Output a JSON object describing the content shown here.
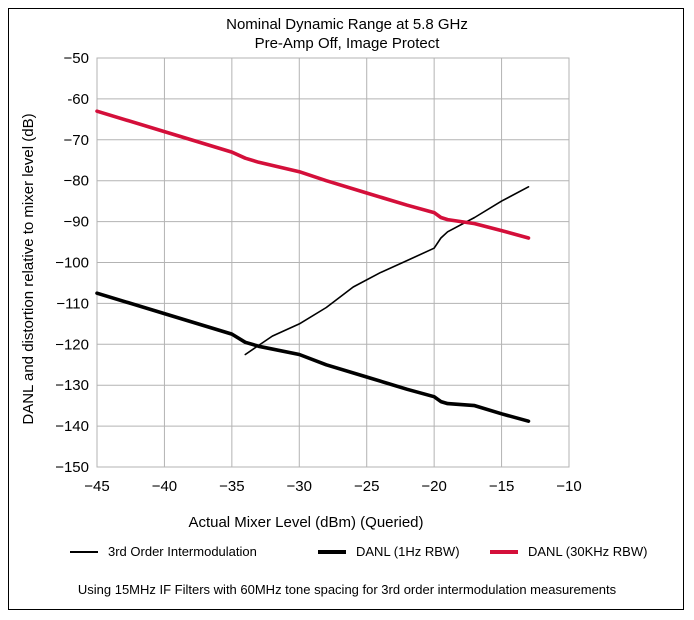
{
  "chart_data": {
    "type": "line",
    "title": "Nominal Dynamic Range at 5.8 GHz",
    "subtitle": "Pre-Amp Off, Image Protect",
    "xlabel": "Actual Mixer Level (dBm) (Queried)",
    "ylabel": "DANL and distortion relative to mixer level (dB)",
    "xlim": [
      -45,
      -10
    ],
    "ylim": [
      -150,
      -50
    ],
    "x_ticks": [
      -45,
      -40,
      -35,
      -30,
      -25,
      -20,
      -15,
      -10
    ],
    "y_ticks": [
      -50,
      -60,
      -70,
      -80,
      -90,
      -100,
      -110,
      -120,
      -130,
      -140,
      -150
    ],
    "x_tick_labels": [
      "−45",
      "−40",
      "−35",
      "−30",
      "−25",
      "−20",
      "−15",
      "−10"
    ],
    "y_tick_labels": [
      "−50",
      "-60",
      "−70",
      "−80",
      "−90",
      "−100",
      "−110",
      "−120",
      "−130",
      "−140",
      "−150"
    ],
    "grid": true,
    "legend_position": "bottom",
    "series": [
      {
        "name": "3rd Order Intermodulation",
        "color": "#000000",
        "line_width": "thin",
        "x": [
          -34,
          -32,
          -30,
          -28,
          -26,
          -24,
          -22,
          -20,
          -19.5,
          -19,
          -17,
          -15,
          -13
        ],
        "y": [
          -122.5,
          -118,
          -115,
          -111,
          -106,
          -102.5,
          -99.5,
          -96.5,
          -94,
          -92.5,
          -89,
          -85,
          -81.5
        ]
      },
      {
        "name": "DANL (1Hz RBW)",
        "color": "#000000",
        "line_width": "thick",
        "x": [
          -45,
          -40,
          -35,
          -34,
          -33,
          -30,
          -28,
          -25,
          -22,
          -20,
          -19.5,
          -19,
          -17,
          -15,
          -13
        ],
        "y": [
          -107.5,
          -112.5,
          -117.5,
          -119.5,
          -120.5,
          -122.5,
          -125,
          -128,
          -131,
          -132.8,
          -134,
          -134.5,
          -135,
          -137,
          -138.8
        ]
      },
      {
        "name": "DANL (30KHz RBW)",
        "color": "#d40f3a",
        "line_width": "thick",
        "x": [
          -45,
          -40,
          -35,
          -34,
          -33,
          -30,
          -28,
          -25,
          -22,
          -20,
          -19.5,
          -19,
          -17,
          -15,
          -13
        ],
        "y": [
          -63,
          -68,
          -73,
          -74.5,
          -75.5,
          -77.8,
          -80,
          -83,
          -86,
          -87.8,
          -89,
          -89.5,
          -90.5,
          -92.2,
          -94
        ]
      }
    ],
    "footnote": "Using 15MHz IF Filters with 60MHz tone spacing for 3rd order intermodulation measurements"
  }
}
